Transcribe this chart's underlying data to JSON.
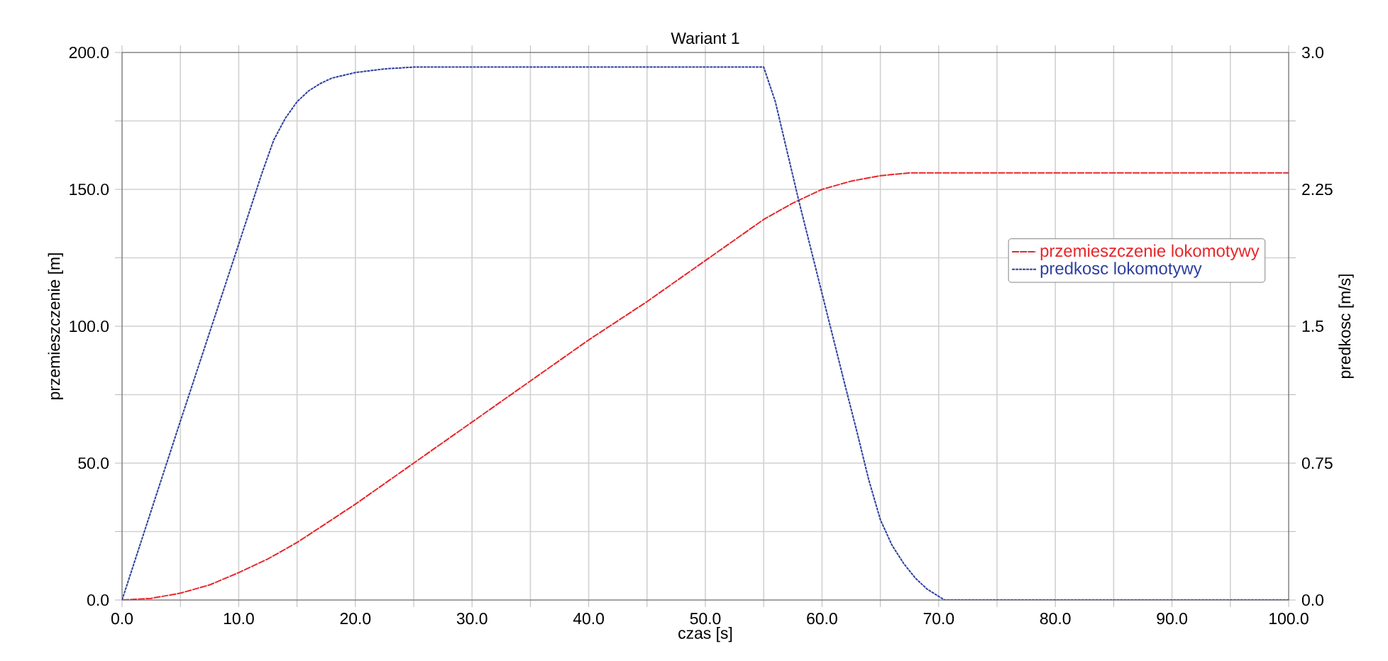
{
  "chart_data": {
    "type": "line",
    "title": "Wariant 1",
    "xlabel": "czas [s]",
    "ylabel": "przemieszczenie [m]",
    "y2label": "predkosc [m/s]",
    "xlim": [
      0,
      100
    ],
    "ylim": [
      0,
      200
    ],
    "y2lim": [
      0,
      3
    ],
    "xticks": [
      {
        "value": 0,
        "label": "0.0"
      },
      {
        "value": 5,
        "label": null
      },
      {
        "value": 10,
        "label": "10.0"
      },
      {
        "value": 15,
        "label": null
      },
      {
        "value": 20,
        "label": "20.0"
      },
      {
        "value": 25,
        "label": null
      },
      {
        "value": 30,
        "label": "30.0"
      },
      {
        "value": 35,
        "label": null
      },
      {
        "value": 40,
        "label": "40.0"
      },
      {
        "value": 45,
        "label": null
      },
      {
        "value": 50,
        "label": "50.0"
      },
      {
        "value": 55,
        "label": null
      },
      {
        "value": 60,
        "label": "60.0"
      },
      {
        "value": 65,
        "label": null
      },
      {
        "value": 70,
        "label": "70.0"
      },
      {
        "value": 75,
        "label": null
      },
      {
        "value": 80,
        "label": "80.0"
      },
      {
        "value": 85,
        "label": null
      },
      {
        "value": 90,
        "label": "90.0"
      },
      {
        "value": 95,
        "label": null
      },
      {
        "value": 100,
        "label": "100.0"
      }
    ],
    "yticks": [
      {
        "value": 0,
        "label": "0.0"
      },
      {
        "value": 25,
        "label": null
      },
      {
        "value": 50,
        "label": "50.0"
      },
      {
        "value": 75,
        "label": null
      },
      {
        "value": 100,
        "label": "100.0"
      },
      {
        "value": 125,
        "label": null
      },
      {
        "value": 150,
        "label": "150.0"
      },
      {
        "value": 175,
        "label": null
      },
      {
        "value": 200,
        "label": "200.0"
      }
    ],
    "y2ticks": [
      {
        "value": 0,
        "label": "0.0"
      },
      {
        "value": 0.375,
        "label": null
      },
      0.75,
      {
        "value": 1.125,
        "label": null
      },
      1.5,
      {
        "value": 1.875,
        "label": null
      },
      2.25,
      {
        "value": 2.625,
        "label": null
      },
      {
        "value": 3,
        "label": "3.0"
      }
    ],
    "grid": true,
    "legend": "right",
    "series": [
      {
        "name": "przemieszczenie lokomotywy",
        "color": "#e8262a",
        "line_style": "dashed",
        "x": [
          0,
          2.5,
          5,
          7.5,
          10,
          12.5,
          15,
          17.5,
          20,
          25,
          30,
          35,
          40,
          45,
          50,
          55,
          57.5,
          60,
          62.5,
          65,
          67.5,
          70,
          80,
          90,
          100
        ],
        "values": [
          0,
          0.6,
          2.5,
          5.5,
          10,
          15,
          21,
          28,
          35,
          50,
          65,
          80,
          95,
          109,
          124,
          139,
          145,
          150,
          153,
          155,
          156,
          156,
          156,
          156,
          156
        ]
      },
      {
        "name": "predkosc lokomotywy",
        "color": "#2e3f9e",
        "line_style": "dotted",
        "axis": "y2",
        "x": [
          0,
          5,
          10,
          12,
          13,
          14,
          15,
          16,
          17,
          18,
          20,
          22.5,
          25,
          30,
          40,
          50,
          55,
          56,
          58,
          60,
          62,
          63,
          64,
          65,
          66,
          67,
          68,
          69,
          70,
          70.5,
          80,
          90,
          100
        ],
        "values": [
          0,
          0.98,
          1.95,
          2.34,
          2.52,
          2.64,
          2.73,
          2.79,
          2.83,
          2.86,
          2.89,
          2.91,
          2.92,
          2.92,
          2.92,
          2.92,
          2.92,
          2.73,
          2.19,
          1.68,
          1.17,
          0.92,
          0.66,
          0.44,
          0.3,
          0.2,
          0.12,
          0.06,
          0.02,
          0,
          0,
          0,
          0
        ]
      }
    ]
  }
}
